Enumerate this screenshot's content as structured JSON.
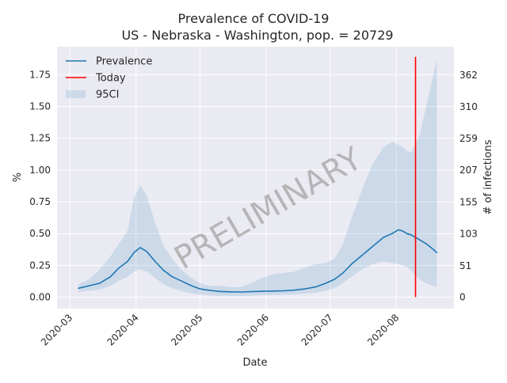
{
  "chart_data": {
    "type": "line",
    "title": "Prevalence of COVID-19",
    "subtitle": "US - Nebraska - Washington, pop. = 20729",
    "xlabel": "Date",
    "ylabel": "%",
    "y2label": "# of infections",
    "watermark": "PRELIMINARY",
    "xlim": [
      "2020-02-24",
      "2020-08-28"
    ],
    "ylim": [
      -0.09,
      1.97
    ],
    "grid": true,
    "legend_position": "top-left",
    "x_ticks": [
      {
        "date": "2020-03-01",
        "label": "2020-03"
      },
      {
        "date": "2020-04-01",
        "label": "2020-04"
      },
      {
        "date": "2020-05-01",
        "label": "2020-05"
      },
      {
        "date": "2020-06-01",
        "label": "2020-06"
      },
      {
        "date": "2020-07-01",
        "label": "2020-07"
      },
      {
        "date": "2020-08-01",
        "label": "2020-08"
      }
    ],
    "y_ticks": [
      {
        "value": 0,
        "label": "0.00"
      },
      {
        "value": 0.25,
        "label": "0.25"
      },
      {
        "value": 0.5,
        "label": "0.50"
      },
      {
        "value": 0.75,
        "label": "0.75"
      },
      {
        "value": 1.0,
        "label": "1.00"
      },
      {
        "value": 1.25,
        "label": "1.25"
      },
      {
        "value": 1.5,
        "label": "1.50"
      },
      {
        "value": 1.75,
        "label": "1.75"
      }
    ],
    "y2_ticks": [
      {
        "value": 0,
        "label": "0"
      },
      {
        "value": 0.246,
        "label": "51"
      },
      {
        "value": 0.497,
        "label": "103"
      },
      {
        "value": 0.748,
        "label": "155"
      },
      {
        "value": 0.999,
        "label": "207"
      },
      {
        "value": 1.249,
        "label": "259"
      },
      {
        "value": 1.496,
        "label": "310"
      },
      {
        "value": 1.746,
        "label": "362"
      }
    ],
    "legend": [
      {
        "label": "Prevalence",
        "kind": "line",
        "color": "#1f77b4"
      },
      {
        "label": "Today",
        "kind": "line",
        "color": "#ff0000"
      },
      {
        "label": "95CI",
        "kind": "band",
        "color": "#1f77b4"
      }
    ],
    "today": {
      "date": "2020-08-10",
      "ymin": 0,
      "ymax": 1.89,
      "color": "#ff0000"
    },
    "series": [
      {
        "name": "Prevalence",
        "color": "#1f77b4",
        "points": [
          [
            "2020-03-05",
            0.07
          ],
          [
            "2020-03-10",
            0.09
          ],
          [
            "2020-03-15",
            0.11
          ],
          [
            "2020-03-20",
            0.16
          ],
          [
            "2020-03-24",
            0.23
          ],
          [
            "2020-03-28",
            0.28
          ],
          [
            "2020-03-31",
            0.35
          ],
          [
            "2020-04-03",
            0.39
          ],
          [
            "2020-04-06",
            0.36
          ],
          [
            "2020-04-10",
            0.28
          ],
          [
            "2020-04-14",
            0.21
          ],
          [
            "2020-04-18",
            0.16
          ],
          [
            "2020-04-22",
            0.13
          ],
          [
            "2020-04-27",
            0.09
          ],
          [
            "2020-05-01",
            0.065
          ],
          [
            "2020-05-05",
            0.055
          ],
          [
            "2020-05-10",
            0.045
          ],
          [
            "2020-05-15",
            0.042
          ],
          [
            "2020-05-20",
            0.041
          ],
          [
            "2020-05-25",
            0.043
          ],
          [
            "2020-05-30",
            0.046
          ],
          [
            "2020-06-04",
            0.048
          ],
          [
            "2020-06-09",
            0.05
          ],
          [
            "2020-06-14",
            0.055
          ],
          [
            "2020-06-19",
            0.065
          ],
          [
            "2020-06-24",
            0.08
          ],
          [
            "2020-06-29",
            0.11
          ],
          [
            "2020-07-03",
            0.14
          ],
          [
            "2020-07-07",
            0.19
          ],
          [
            "2020-07-11",
            0.26
          ],
          [
            "2020-07-16",
            0.33
          ],
          [
            "2020-07-21",
            0.4
          ],
          [
            "2020-07-26",
            0.47
          ],
          [
            "2020-07-30",
            0.5
          ],
          [
            "2020-08-02",
            0.53
          ],
          [
            "2020-08-04",
            0.52
          ],
          [
            "2020-08-06",
            0.5
          ],
          [
            "2020-08-08",
            0.49
          ],
          [
            "2020-08-10",
            0.47
          ],
          [
            "2020-08-12",
            0.45
          ],
          [
            "2020-08-15",
            0.42
          ],
          [
            "2020-08-18",
            0.38
          ],
          [
            "2020-08-20",
            0.35
          ]
        ]
      }
    ],
    "ci95": {
      "name": "95CI",
      "color": "#1f77b4",
      "opacity": 0.15,
      "points": [
        [
          "2020-03-05",
          0.04,
          0.1
        ],
        [
          "2020-03-10",
          0.05,
          0.14
        ],
        [
          "2020-03-15",
          0.06,
          0.22
        ],
        [
          "2020-03-20",
          0.09,
          0.32
        ],
        [
          "2020-03-24",
          0.13,
          0.42
        ],
        [
          "2020-03-28",
          0.16,
          0.52
        ],
        [
          "2020-03-31",
          0.2,
          0.78
        ],
        [
          "2020-04-03",
          0.22,
          0.88
        ],
        [
          "2020-04-06",
          0.2,
          0.8
        ],
        [
          "2020-04-10",
          0.15,
          0.58
        ],
        [
          "2020-04-14",
          0.1,
          0.4
        ],
        [
          "2020-04-18",
          0.07,
          0.3
        ],
        [
          "2020-04-22",
          0.05,
          0.22
        ],
        [
          "2020-04-27",
          0.03,
          0.15
        ],
        [
          "2020-05-01",
          0.02,
          0.11
        ],
        [
          "2020-05-05",
          0.015,
          0.09
        ],
        [
          "2020-05-10",
          0.01,
          0.09
        ],
        [
          "2020-05-15",
          0.01,
          0.08
        ],
        [
          "2020-05-20",
          0.01,
          0.08
        ],
        [
          "2020-05-25",
          0.012,
          0.11
        ],
        [
          "2020-05-30",
          0.015,
          0.15
        ],
        [
          "2020-06-04",
          0.018,
          0.18
        ],
        [
          "2020-06-09",
          0.02,
          0.19
        ],
        [
          "2020-06-14",
          0.022,
          0.2
        ],
        [
          "2020-06-19",
          0.028,
          0.23
        ],
        [
          "2020-06-24",
          0.035,
          0.26
        ],
        [
          "2020-06-29",
          0.05,
          0.27
        ],
        [
          "2020-07-03",
          0.07,
          0.3
        ],
        [
          "2020-07-07",
          0.11,
          0.42
        ],
        [
          "2020-07-11",
          0.16,
          0.62
        ],
        [
          "2020-07-16",
          0.22,
          0.85
        ],
        [
          "2020-07-21",
          0.26,
          1.05
        ],
        [
          "2020-07-26",
          0.28,
          1.18
        ],
        [
          "2020-07-30",
          0.27,
          1.22
        ],
        [
          "2020-08-02",
          0.26,
          1.2
        ],
        [
          "2020-08-04",
          0.25,
          1.18
        ],
        [
          "2020-08-06",
          0.24,
          1.15
        ],
        [
          "2020-08-08",
          0.21,
          1.14
        ],
        [
          "2020-08-10",
          0.17,
          1.2
        ],
        [
          "2020-08-12",
          0.14,
          1.28
        ],
        [
          "2020-08-15",
          0.11,
          1.5
        ],
        [
          "2020-08-18",
          0.09,
          1.72
        ],
        [
          "2020-08-20",
          0.08,
          1.88
        ]
      ]
    }
  }
}
